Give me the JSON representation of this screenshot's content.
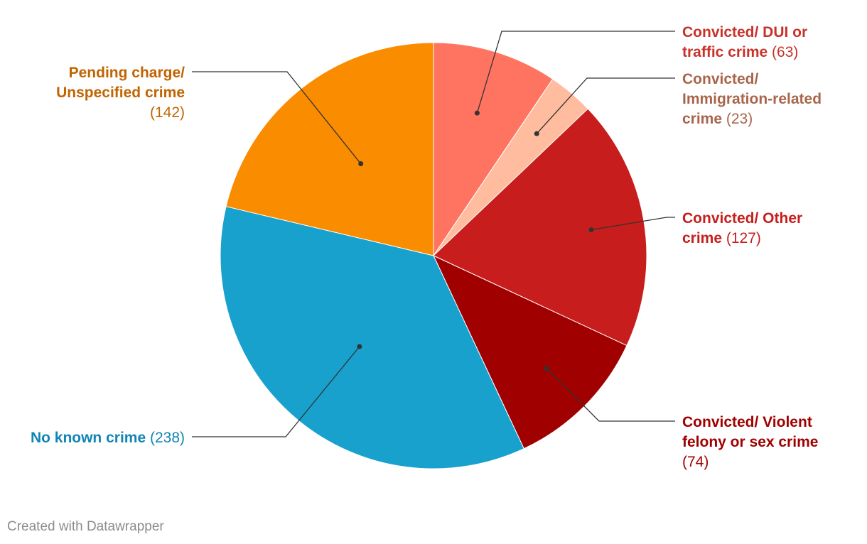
{
  "chart_data": {
    "type": "pie",
    "start_angle_deg": 0,
    "direction": "clockwise",
    "slices": [
      {
        "label_lines": [
          "Convicted/ DUI or",
          "traffic crime"
        ],
        "value": 63,
        "value_text": "(63)",
        "color": "#ff7461",
        "text_color": "#c9322b"
      },
      {
        "label_lines": [
          "Convicted/",
          "Immigration-related",
          "crime"
        ],
        "value": 23,
        "value_text": "(23)",
        "color": "#ffbc9f",
        "text_color": "#a8654b"
      },
      {
        "label_lines": [
          "Convicted/ Other",
          "crime"
        ],
        "value": 127,
        "value_text": "(127)",
        "color": "#c71e1d",
        "text_color": "#c71e1d"
      },
      {
        "label_lines": [
          "Convicted/ Violent",
          "felony or sex crime"
        ],
        "value": 74,
        "value_text": "(74)",
        "color": "#a10000",
        "text_color": "#a10000"
      },
      {
        "label_lines": [
          "No known crime"
        ],
        "value": 238,
        "value_text": "(238)",
        "color": "#18a1cd",
        "text_color": "#1185b4"
      },
      {
        "label_lines": [
          "Pending charge/",
          "Unspecified crime"
        ],
        "value": 142,
        "value_text": "(142)",
        "color": "#fa8c00",
        "text_color": "#c26400"
      }
    ]
  },
  "footer": {
    "credit": "Created with Datawrapper"
  }
}
